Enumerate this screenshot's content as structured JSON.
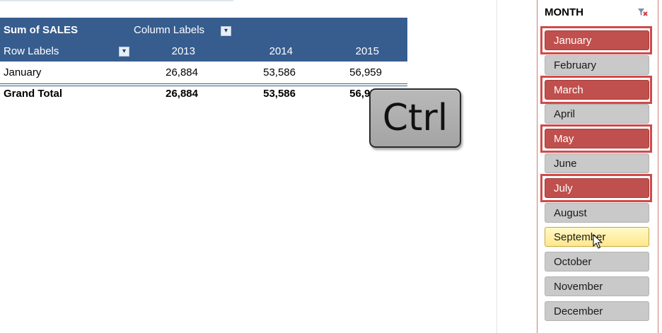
{
  "pivot": {
    "header": {
      "values_label": "Sum of SALES",
      "column_labels": "Column Labels",
      "row_labels": "Row Labels",
      "years": [
        "2013",
        "2014",
        "2015"
      ]
    },
    "rows": [
      {
        "label": "January",
        "values": [
          "26,884",
          "53,586",
          "56,959"
        ]
      }
    ],
    "grand_total": {
      "label": "Grand Total",
      "values": [
        "26,884",
        "53,586",
        "56,959"
      ]
    },
    "header_color": "#375d8f"
  },
  "key_overlay": {
    "label": "Ctrl"
  },
  "slicer": {
    "title": "MONTH",
    "clear_filter_icon": "filter-clear-icon",
    "selected_color": "#c0504d",
    "items": [
      {
        "label": "January",
        "selected": true
      },
      {
        "label": "February",
        "selected": false
      },
      {
        "label": "March",
        "selected": true
      },
      {
        "label": "April",
        "selected": false
      },
      {
        "label": "May",
        "selected": true
      },
      {
        "label": "June",
        "selected": false
      },
      {
        "label": "July",
        "selected": true
      },
      {
        "label": "August",
        "selected": false
      },
      {
        "label": "September",
        "selected": false,
        "hovered": true
      },
      {
        "label": "October",
        "selected": false
      },
      {
        "label": "November",
        "selected": false
      },
      {
        "label": "December",
        "selected": false
      }
    ]
  }
}
